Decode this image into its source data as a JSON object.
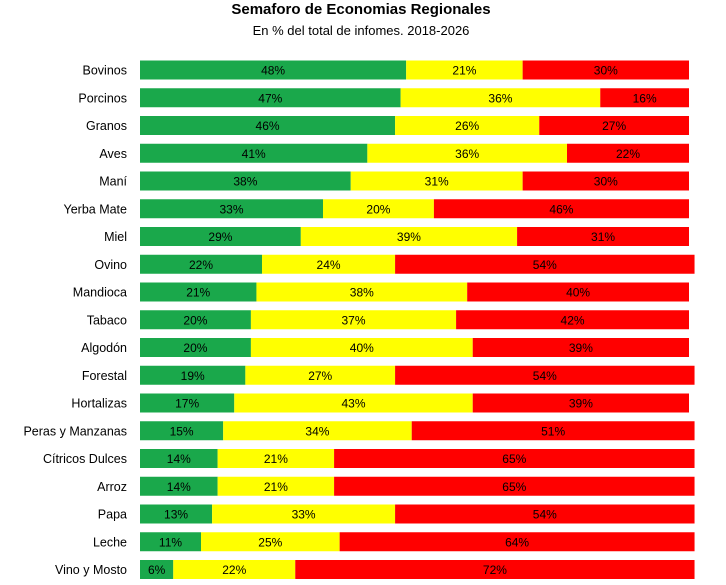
{
  "chart_data": {
    "type": "bar",
    "orientation": "horizontal",
    "stacked": true,
    "title": "Semaforo de Economias Regionales",
    "subtitle": "En % del total de infomes. 2018-2026",
    "categories": [
      "Bovinos",
      "Porcinos",
      "Granos",
      "Aves",
      "Maní",
      "Yerba Mate",
      "Miel",
      "Ovino",
      "Mandioca",
      "Tabaco",
      "Algodón",
      "Forestal",
      "Hortalizas",
      "Peras y Manzanas",
      "Cítricos Dulces",
      "Arroz",
      "Papa",
      "Leche",
      "Vino y Mosto"
    ],
    "series": [
      {
        "color": "#1aa84b",
        "values": [
          48,
          47,
          46,
          41,
          38,
          33,
          29,
          22,
          21,
          20,
          20,
          19,
          17,
          15,
          14,
          14,
          13,
          11,
          6
        ]
      },
      {
        "color": "#ffff00",
        "values": [
          21,
          36,
          26,
          36,
          31,
          20,
          39,
          24,
          38,
          37,
          40,
          27,
          43,
          34,
          21,
          21,
          33,
          25,
          22
        ]
      },
      {
        "color": "#ff0000",
        "values": [
          30,
          16,
          27,
          22,
          30,
          46,
          31,
          54,
          40,
          42,
          39,
          54,
          39,
          51,
          65,
          65,
          54,
          64,
          72
        ]
      }
    ],
    "value_suffix": "%",
    "xlim": [
      0,
      99
    ],
    "grid": false,
    "legend": "none"
  }
}
